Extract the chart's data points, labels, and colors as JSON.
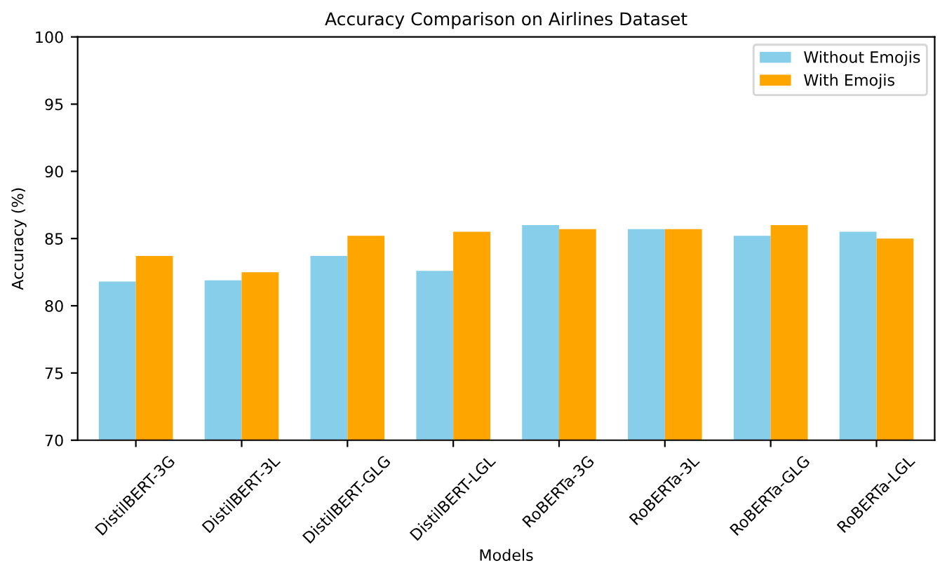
{
  "chart_data": {
    "type": "bar",
    "title": "Accuracy Comparison on Airlines Dataset",
    "xlabel": "Models",
    "ylabel": "Accuracy (%)",
    "categories": [
      "DistilBERT-3G",
      "DistilBERT-3L",
      "DistilBERT-GLG",
      "DistilBERT-LGL",
      "RoBERTa-3G",
      "RoBERTa-3L",
      "RoBERTa-GLG",
      "RoBERTa-LGL"
    ],
    "series": [
      {
        "name": "Without Emojis",
        "color": "#87ceeb",
        "values": [
          81.8,
          81.9,
          83.7,
          82.6,
          86.0,
          85.7,
          85.2,
          85.5
        ]
      },
      {
        "name": "With Emojis",
        "color": "#ffa500",
        "values": [
          83.7,
          82.5,
          85.2,
          85.5,
          85.7,
          85.7,
          86.0,
          85.0
        ]
      }
    ],
    "ylim": [
      70,
      100
    ],
    "yticks": [
      70,
      75,
      80,
      85,
      90,
      95,
      100
    ],
    "legend": "top right",
    "grid": false
  }
}
